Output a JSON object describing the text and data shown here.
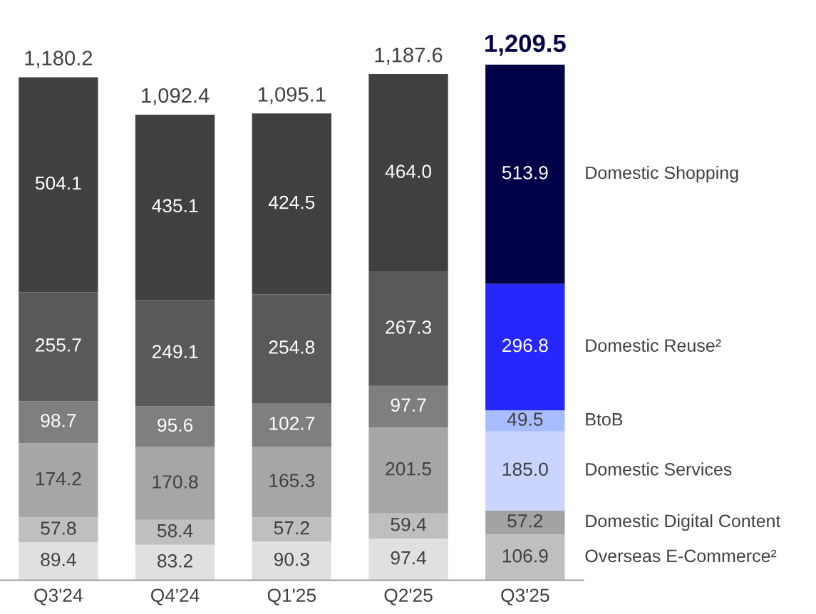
{
  "chart_data": {
    "type": "bar",
    "stacked": true,
    "categories": [
      "Q3'24",
      "Q4'24",
      "Q1'25",
      "Q2'25",
      "Q3'25"
    ],
    "series": [
      {
        "name": "Overseas E-Commerce²",
        "colors": [
          "#e0e0e0",
          "#e0e0e0",
          "#e0e0e0",
          "#e0e0e0",
          "#bfbfbf"
        ],
        "values": [
          89.4,
          83.2,
          90.3,
          97.4,
          106.9
        ],
        "value_labels": [
          "89.4",
          "83.2",
          "90.3",
          "97.4",
          "106.9"
        ]
      },
      {
        "name": "Domestic Digital Content",
        "colors": [
          "#bfbfbf",
          "#bfbfbf",
          "#bfbfbf",
          "#bfbfbf",
          "#a3a3a3"
        ],
        "values": [
          57.8,
          58.4,
          57.2,
          59.4,
          57.2
        ],
        "value_labels": [
          "57.8",
          "58.4",
          "57.2",
          "59.4",
          "57.2"
        ]
      },
      {
        "name": "Domestic Services",
        "colors": [
          "#a6a6a6",
          "#a6a6a6",
          "#a6a6a6",
          "#a6a6a6",
          "#c9d5ff"
        ],
        "values": [
          174.2,
          170.8,
          165.3,
          201.5,
          185.0
        ],
        "value_labels": [
          "174.2",
          "170.8",
          "165.3",
          "201.5",
          "185.0"
        ]
      },
      {
        "name": "BtoB",
        "colors": [
          "#7f7f7f",
          "#7f7f7f",
          "#7f7f7f",
          "#7f7f7f",
          "#a9bcff"
        ],
        "values": [
          98.7,
          95.6,
          102.7,
          97.7,
          49.5
        ],
        "value_labels": [
          "98.7",
          "95.6",
          "102.7",
          "97.7",
          "49.5"
        ]
      },
      {
        "name": "Domestic Reuse²",
        "colors": [
          "#595959",
          "#595959",
          "#595959",
          "#595959",
          "#2626ff"
        ],
        "values": [
          255.7,
          249.1,
          254.8,
          267.3,
          296.8
        ],
        "value_labels": [
          "255.7",
          "249.1",
          "254.8",
          "267.3",
          "296.8"
        ]
      },
      {
        "name": "Domestic Shopping",
        "colors": [
          "#404040",
          "#404040",
          "#404040",
          "#404040",
          "#000048"
        ],
        "values": [
          504.1,
          435.1,
          424.5,
          464.0,
          513.9
        ],
        "value_labels": [
          "504.1",
          "435.1",
          "424.5",
          "464.0",
          "513.9"
        ]
      }
    ],
    "totals": [
      "1,180.2",
      "1,092.4",
      "1,095.1",
      "1,187.6",
      "1,209.5"
    ]
  }
}
